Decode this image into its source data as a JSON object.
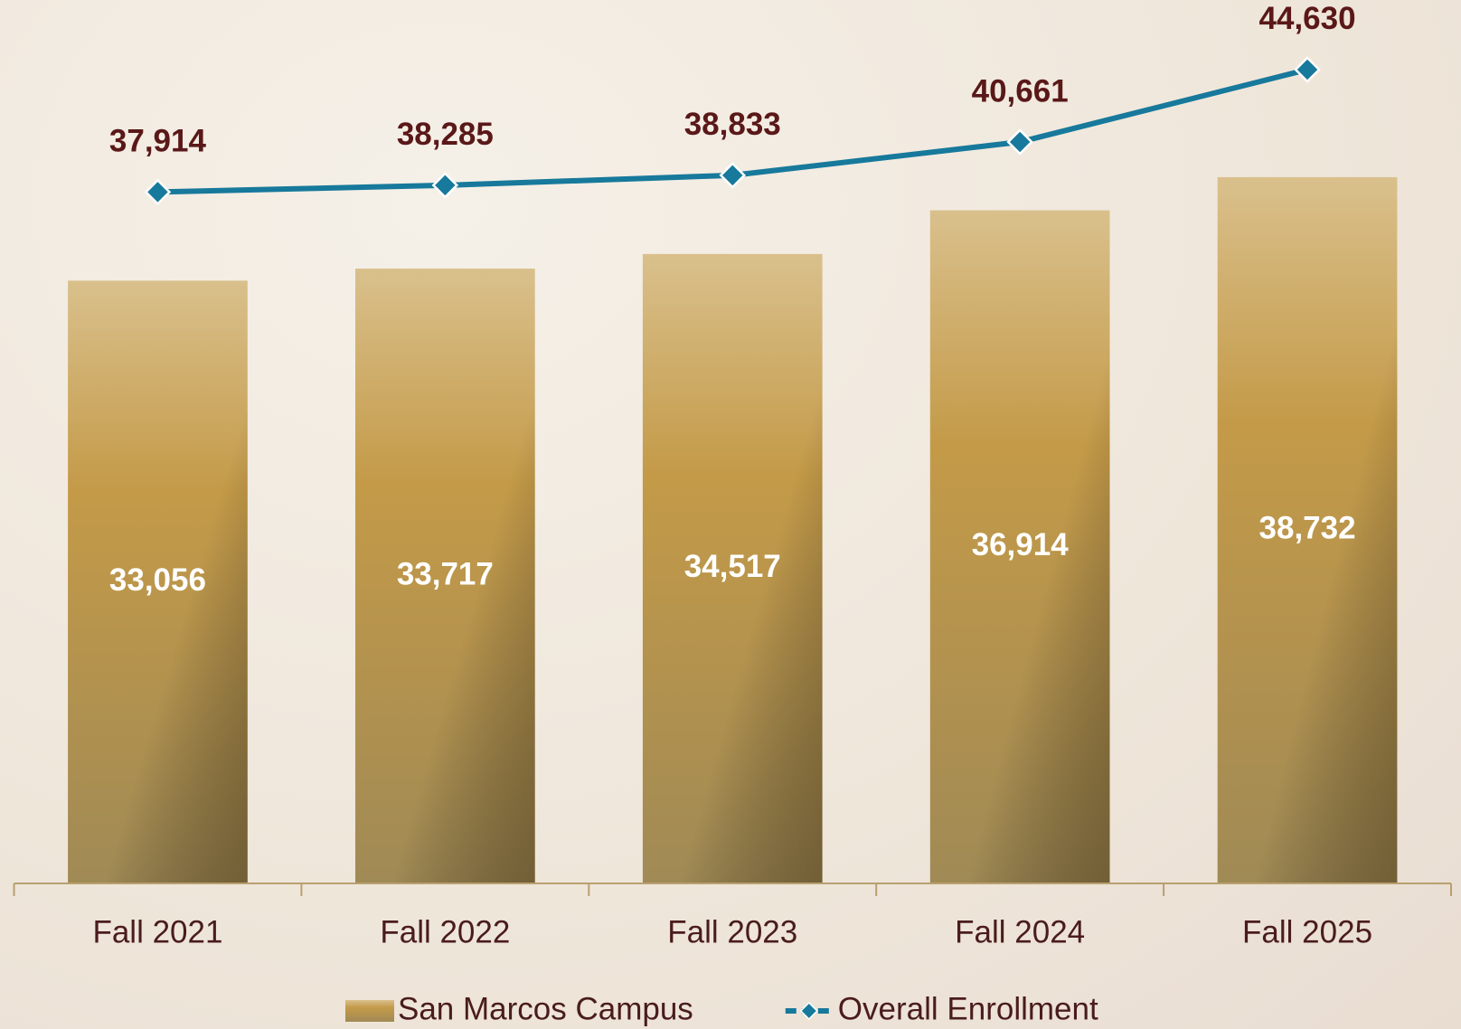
{
  "chart_data": {
    "type": "combo",
    "categories": [
      "Fall 2021",
      "Fall 2022",
      "Fall 2023",
      "Fall 2024",
      "Fall 2025"
    ],
    "series": [
      {
        "name": "San Marcos Campus",
        "type": "bar",
        "color": "#c49a48",
        "values": [
          33056,
          33717,
          34517,
          36914,
          38732
        ],
        "value_labels": [
          "33,056",
          "33,717",
          "34,517",
          "36,914",
          "38,732"
        ]
      },
      {
        "name": "Overall Enrollment",
        "type": "line",
        "color": "#17799b",
        "values": [
          37914,
          38285,
          38833,
          40661,
          44630
        ],
        "value_labels": [
          "37,914",
          "38,285",
          "38,833",
          "40,661",
          "44,630"
        ]
      }
    ],
    "ylim": [
      0,
      48000
    ],
    "legend": "bottom"
  }
}
